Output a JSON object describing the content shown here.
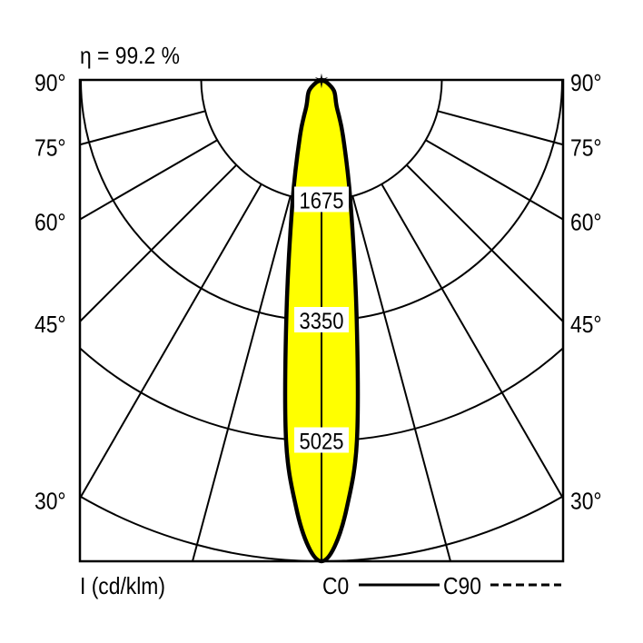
{
  "efficiency_label": "η = 99.2 %",
  "chart_data": {
    "type": "polar",
    "title": "",
    "unit_label": "I (cd/klm)",
    "radial_ticks": [
      1675,
      3350,
      5025,
      6700
    ],
    "radial_tick_labels": [
      "1675",
      "3350",
      "5025"
    ],
    "radial_max": 6700,
    "angle_ticks": [
      15,
      30,
      45,
      60,
      75,
      90
    ],
    "angle_tick_labels": [
      {
        "angle": 90,
        "label": "90°"
      },
      {
        "angle": 75,
        "label": "75°"
      },
      {
        "angle": 60,
        "label": "60°"
      },
      {
        "angle": 45,
        "label": "45°"
      },
      {
        "angle": 30,
        "label": "30°"
      }
    ],
    "legend": [
      {
        "name": "C0",
        "style": "solid"
      },
      {
        "name": "C90",
        "style": "dashed"
      }
    ],
    "legend_placement": "bottom-right",
    "fill_color": "#ffff00",
    "line_color": "#000000",
    "series": [
      {
        "name": "C0",
        "angles": [
          0,
          1.6,
          3.4,
          5.6,
          8.4,
          13.4,
          21,
          30,
          49,
          70,
          90
        ],
        "values": [
          6700,
          6500,
          5960,
          5050,
          3350,
          1740,
          835,
          420,
          230,
          60,
          0
        ]
      }
    ]
  }
}
